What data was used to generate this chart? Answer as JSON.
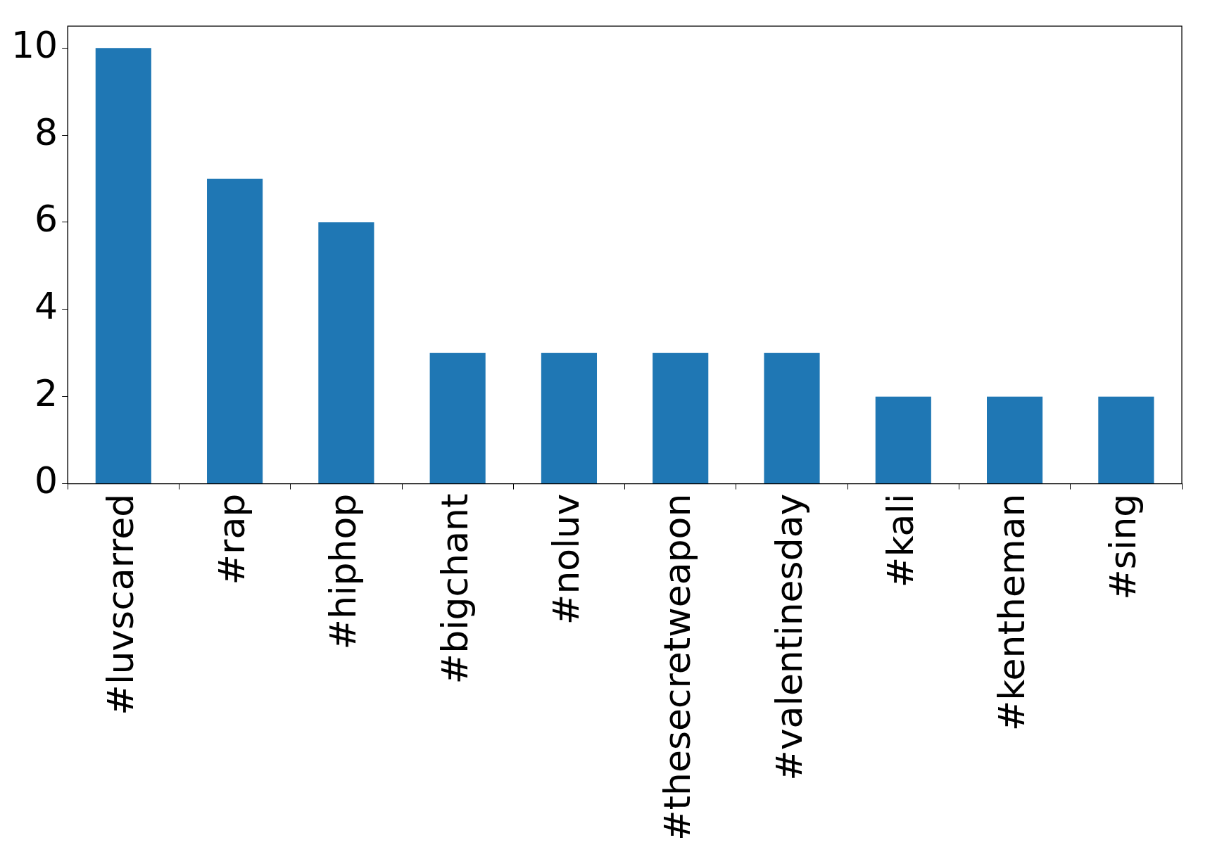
{
  "chart_data": {
    "type": "bar",
    "categories": [
      "#luvscarred",
      "#rap",
      "#hiphop",
      "#bigchant",
      "#noluv",
      "#thesecretweapon",
      "#valentinesday",
      "#kali",
      "#kentheman",
      "#sing"
    ],
    "values": [
      10,
      7,
      6,
      3,
      3,
      3,
      3,
      2,
      2,
      2
    ],
    "color": "#1f77b4",
    "ylim": [
      0,
      10.5
    ],
    "yticks": [
      0,
      2,
      4,
      6,
      8,
      10
    ],
    "grid": false,
    "legend": false
  }
}
